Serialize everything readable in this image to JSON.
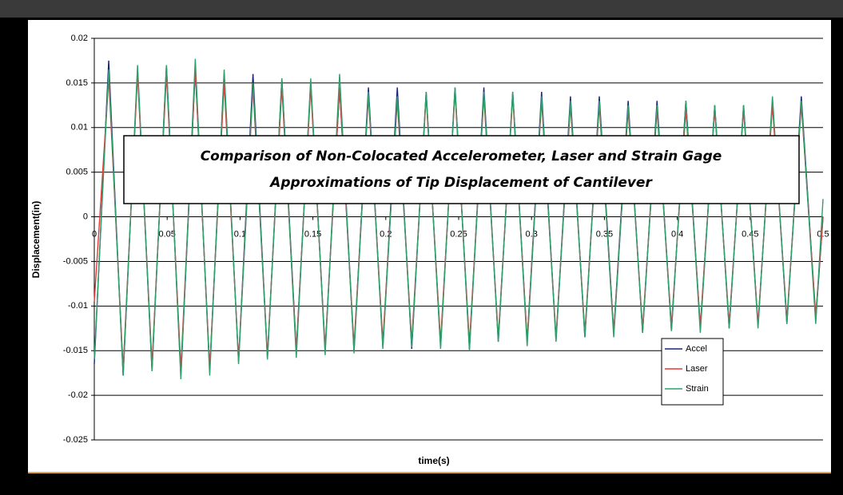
{
  "chart_data": {
    "type": "line",
    "title": [
      "Comparison of Non-Colocated Accelerometer, Laser and Strain Gage",
      "Approximations of Tip Displacement of Cantilever"
    ],
    "x_label": "time(s)",
    "y_label": "Displacement(in)",
    "x": [
      0,
      0.0099,
      0.0198,
      0.0297,
      0.0396,
      0.0495,
      0.0594,
      0.0693,
      0.0792,
      0.0891,
      0.099,
      0.1089,
      0.1188,
      0.1287,
      0.1386,
      0.1485,
      0.1584,
      0.1683,
      0.1782,
      0.1881,
      0.198,
      0.2079,
      0.2178,
      0.2277,
      0.2376,
      0.2475,
      0.2574,
      0.2673,
      0.2772,
      0.2871,
      0.297,
      0.3069,
      0.3168,
      0.3267,
      0.3366,
      0.3465,
      0.3564,
      0.3663,
      0.3762,
      0.3861,
      0.396,
      0.4059,
      0.4158,
      0.4257,
      0.4356,
      0.4455,
      0.4554,
      0.4653,
      0.4752,
      0.4851,
      0.495,
      0.5
    ],
    "series": [
      {
        "name": "Accel",
        "color": "#1a237e",
        "values": [
          -0.0165,
          0.0175,
          -0.0178,
          0.0165,
          -0.0172,
          0.017,
          -0.0178,
          0.0165,
          -0.0172,
          0.016,
          -0.0162,
          0.016,
          -0.0158,
          0.0155,
          -0.015,
          0.015,
          -0.015,
          0.0145,
          -0.015,
          0.0145,
          -0.0146,
          0.0145,
          -0.0148,
          0.014,
          -0.0145,
          0.0145,
          -0.0148,
          0.0145,
          -0.014,
          0.014,
          -0.014,
          0.014,
          -0.0138,
          0.0135,
          -0.0135,
          0.0135,
          -0.013,
          0.013,
          -0.013,
          0.013,
          -0.0128,
          0.013,
          -0.0125,
          0.0125,
          -0.0125,
          0.0125,
          -0.0122,
          0.013,
          -0.012,
          0.0135,
          -0.0115,
          0
        ]
      },
      {
        "name": "Laser",
        "color": "#e53935",
        "values": [
          -0.0095,
          0.0155,
          -0.017,
          0.016,
          -0.0165,
          0.016,
          -0.017,
          0.0165,
          -0.017,
          0.015,
          -0.016,
          0.0145,
          -0.0155,
          0.0145,
          -0.015,
          0.0145,
          -0.0148,
          0.0145,
          -0.0145,
          0.0135,
          -0.014,
          0.013,
          -0.014,
          0.0135,
          -0.014,
          0.014,
          -0.0142,
          0.0135,
          -0.0135,
          0.0135,
          -0.0138,
          0.013,
          -0.0135,
          0.0125,
          -0.013,
          0.0125,
          -0.013,
          0.012,
          -0.0125,
          0.012,
          -0.0122,
          0.012,
          -0.0122,
          0.012,
          -0.012,
          0.012,
          -0.012,
          0.0125,
          -0.0115,
          0.0125,
          -0.011,
          0
        ]
      },
      {
        "name": "Strain",
        "color": "#2e9e6b",
        "values": [
          -0.016,
          0.0165,
          -0.0178,
          0.017,
          -0.0173,
          0.017,
          -0.0182,
          0.0177,
          -0.0178,
          0.0165,
          -0.0165,
          0.015,
          -0.016,
          0.0155,
          -0.0158,
          0.0155,
          -0.0155,
          0.016,
          -0.0153,
          0.014,
          -0.0148,
          0.0135,
          -0.0146,
          0.014,
          -0.0148,
          0.0145,
          -0.015,
          0.014,
          -0.014,
          0.014,
          -0.0145,
          0.0135,
          -0.014,
          0.013,
          -0.0135,
          0.013,
          -0.0135,
          0.0125,
          -0.013,
          0.0125,
          -0.0128,
          0.013,
          -0.013,
          0.0125,
          -0.0125,
          0.0125,
          -0.0125,
          0.0135,
          -0.012,
          0.013,
          -0.012,
          0.002
        ]
      }
    ],
    "xlim": [
      0,
      0.5
    ],
    "xticks": [
      0,
      0.05,
      0.1,
      0.15,
      0.2,
      0.25,
      0.3,
      0.35,
      0.4,
      0.45,
      0.5
    ],
    "ylim": [
      -0.025,
      0.02
    ],
    "yticks": [
      -0.025,
      -0.02,
      -0.015,
      -0.01,
      -0.005,
      0,
      0.005,
      0.01,
      0.015,
      0.02
    ],
    "grid": true,
    "legend": "lower right"
  }
}
